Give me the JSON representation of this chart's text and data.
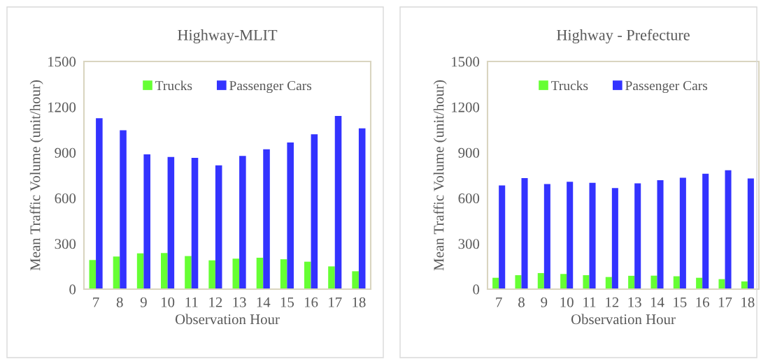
{
  "chart_data": [
    {
      "type": "bar",
      "title": "Highway-MLIT",
      "xlabel": "Observation Hour",
      "ylabel": "Mean Traffic Volume (unit/hour)",
      "categories": [
        "7",
        "8",
        "9",
        "10",
        "11",
        "12",
        "13",
        "14",
        "15",
        "16",
        "17",
        "18"
      ],
      "series": [
        {
          "name": "Trucks",
          "color": "#66ff33",
          "values": [
            192,
            215,
            236,
            238,
            218,
            190,
            201,
            207,
            197,
            181,
            150,
            118
          ]
        },
        {
          "name": "Passenger Cars",
          "color": "#3333ff",
          "values": [
            1126,
            1047,
            888,
            871,
            865,
            815,
            878,
            921,
            966,
            1020,
            1141,
            1060
          ]
        }
      ],
      "ylim": [
        0,
        1500
      ],
      "yticks": [
        0,
        300,
        600,
        900,
        1200,
        1500
      ],
      "grid": false,
      "legend": "top"
    },
    {
      "type": "bar",
      "title": "Highway - Prefecture",
      "xlabel": "Observation Hour",
      "ylabel": "Mean Traffic Volume (unit/hour)",
      "categories": [
        "7",
        "8",
        "9",
        "10",
        "11",
        "12",
        "13",
        "14",
        "15",
        "16",
        "17",
        "18"
      ],
      "series": [
        {
          "name": "Trucks",
          "color": "#66ff33",
          "values": [
            75,
            92,
            106,
            100,
            92,
            80,
            88,
            89,
            85,
            75,
            66,
            51
          ]
        },
        {
          "name": "Passenger Cars",
          "color": "#3333ff",
          "values": [
            683,
            732,
            692,
            708,
            701,
            666,
            697,
            718,
            734,
            760,
            783,
            729
          ]
        }
      ],
      "ylim": [
        0,
        1500
      ],
      "yticks": [
        0,
        300,
        600,
        900,
        1200,
        1500
      ],
      "grid": false,
      "legend": "top"
    }
  ]
}
